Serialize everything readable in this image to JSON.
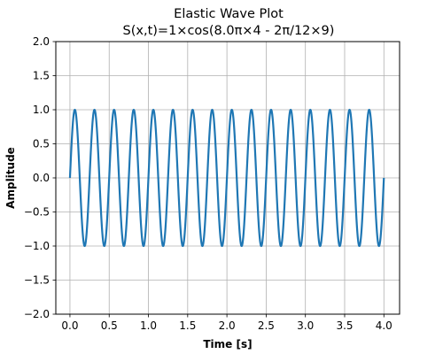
{
  "chart_data": {
    "type": "line",
    "title": "Elastic Wave Plot",
    "subtitle": "S(x,t)=1×cos(8.0π×4 - 2π/12×9)",
    "xlabel": "Time [s]",
    "ylabel": "Amplitude",
    "xlim": [
      -0.18,
      4.2
    ],
    "ylim": [
      -2.0,
      2.0
    ],
    "x_ticks": [
      0.0,
      0.5,
      1.0,
      1.5,
      2.0,
      2.5,
      3.0,
      3.5,
      4.0
    ],
    "x_tick_labels": [
      "0.0",
      "0.5",
      "1.0",
      "1.5",
      "2.0",
      "2.5",
      "3.0",
      "3.5",
      "4.0"
    ],
    "y_ticks": [
      -2.0,
      -1.5,
      -1.0,
      -0.5,
      0.0,
      0.5,
      1.0,
      1.5,
      2.0
    ],
    "y_tick_labels": [
      "−2.0",
      "−1.5",
      "−1.0",
      "−0.5",
      "0.0",
      "0.5",
      "1.0",
      "1.5",
      "2.0"
    ],
    "grid": true,
    "legend": "none",
    "series": [
      {
        "function": "sin(2*pi*4*t)",
        "x_range": [
          0,
          4
        ],
        "frequency_hz": 4,
        "amplitude": 1,
        "color": "#1f77b4"
      }
    ]
  }
}
